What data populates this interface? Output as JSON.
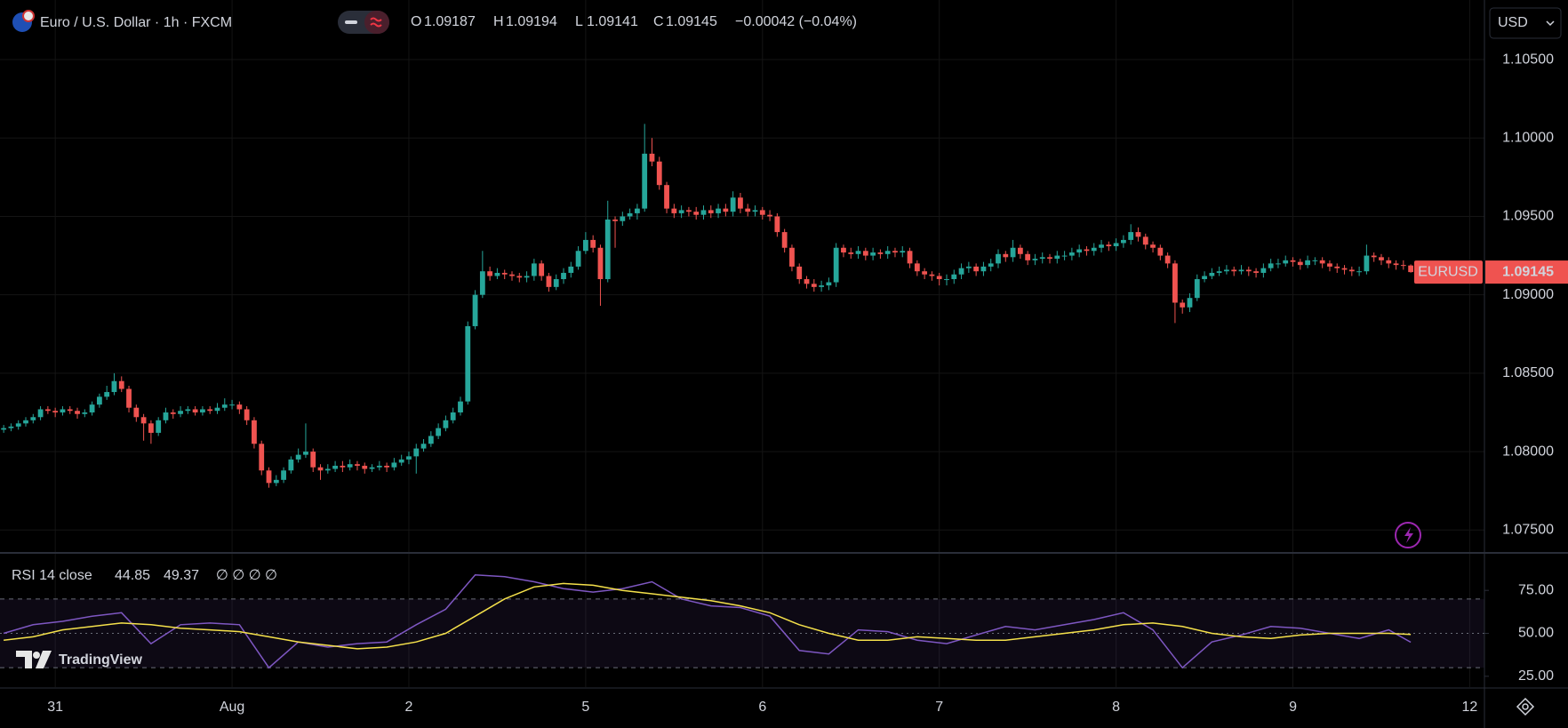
{
  "header": {
    "symbol": "Euro / U.S. Dollar · 1h · FXCM",
    "ohlc_labels": [
      "O",
      "H",
      "L",
      "C"
    ],
    "change": "−0.00042 (−0.04%)"
  },
  "currency": "USD",
  "watermark": "TradingView",
  "chart_data": [
    {
      "type": "candlestick",
      "symbol_tag": "EURUSD",
      "up_color": "#26a69a",
      "down_color": "#ef5350",
      "grid": true,
      "xlim": [
        -0.5,
        201
      ],
      "xticks": [
        {
          "value": 7,
          "label": "31"
        },
        {
          "value": 31,
          "label": "Aug"
        },
        {
          "value": 55,
          "label": "2"
        },
        {
          "value": 79,
          "label": "5"
        },
        {
          "value": 103,
          "label": "6"
        },
        {
          "value": 127,
          "label": "7"
        },
        {
          "value": 151,
          "label": "8"
        },
        {
          "value": 175,
          "label": "9"
        },
        {
          "value": 199,
          "label": "12"
        }
      ],
      "ylim": [
        1.0736,
        1.1088
      ],
      "yticks": [
        {
          "value": 1.075,
          "label": "1.07500"
        },
        {
          "value": 1.08,
          "label": "1.08000"
        },
        {
          "value": 1.085,
          "label": "1.08500"
        },
        {
          "value": 1.09,
          "label": "1.09000"
        },
        {
          "value": 1.095,
          "label": "1.09500"
        },
        {
          "value": 1.1,
          "label": "1.10000"
        },
        {
          "value": 1.105,
          "label": "1.10500"
        }
      ],
      "open": [
        1.0814,
        1.0815,
        1.0816,
        1.0818,
        1.082,
        1.0822,
        1.0827,
        1.0826,
        1.0825,
        1.0827,
        1.0826,
        1.0824,
        1.0825,
        1.083,
        1.0835,
        1.0838,
        1.0845,
        1.084,
        1.0828,
        1.0822,
        1.0818,
        1.0812,
        1.082,
        1.0825,
        1.0824,
        1.0826,
        1.0827,
        1.0825,
        1.0827,
        1.0826,
        1.0828,
        1.083,
        1.083,
        1.0827,
        1.082,
        1.0805,
        1.0788,
        1.078,
        1.0782,
        1.0788,
        1.0795,
        1.0798,
        1.08,
        1.079,
        1.0788,
        1.0789,
        1.0791,
        1.079,
        1.0792,
        1.0791,
        1.0789,
        1.079,
        1.0791,
        1.079,
        1.0793,
        1.0795,
        1.0797,
        1.0802,
        1.0805,
        1.081,
        1.0815,
        1.082,
        1.0825,
        1.0832,
        1.088,
        1.09,
        1.0915,
        1.0912,
        1.0914,
        1.0913,
        1.0912,
        1.0911,
        1.0912,
        1.092,
        1.0912,
        1.0905,
        1.091,
        1.0914,
        1.0918,
        1.0928,
        1.0935,
        1.093,
        1.091,
        1.0948,
        1.0947,
        1.095,
        1.0952,
        1.0955,
        1.099,
        1.0985,
        1.097,
        1.0955,
        1.0952,
        1.0954,
        1.0953,
        1.0951,
        1.0954,
        1.0952,
        1.0955,
        1.0953,
        1.0962,
        1.0955,
        1.0953,
        1.0954,
        1.0951,
        1.095,
        1.094,
        1.093,
        1.0918,
        1.091,
        1.0907,
        1.0905,
        1.0906,
        1.0908,
        1.093,
        1.0927,
        1.0926,
        1.0928,
        1.0925,
        1.0927,
        1.0926,
        1.0928,
        1.0927,
        1.0928,
        1.092,
        1.0915,
        1.0913,
        1.0912,
        1.091,
        1.091,
        1.0913,
        1.0917,
        1.0918,
        1.0915,
        1.0918,
        1.092,
        1.0926,
        1.0924,
        1.093,
        1.0926,
        1.0922,
        1.0923,
        1.0924,
        1.0923,
        1.0925,
        1.0925,
        1.0927,
        1.0929,
        1.0928,
        1.093,
        1.0932,
        1.0931,
        1.0933,
        1.0935,
        1.094,
        1.0937,
        1.0932,
        1.093,
        1.0925,
        1.092,
        1.0895,
        1.0892,
        1.0898,
        1.091,
        1.0912,
        1.0914,
        1.0915,
        1.0916,
        1.0915,
        1.0916,
        1.0915,
        1.0914,
        1.0917,
        1.092,
        1.092,
        1.0922,
        1.0921,
        1.0919,
        1.0922,
        1.0922,
        1.092,
        1.0918,
        1.0917,
        1.0916,
        1.0915,
        1.0915,
        1.0925,
        1.0924,
        1.0922,
        1.092,
        1.0919,
        1.09187
      ],
      "high": [
        1.0817,
        1.0818,
        1.082,
        1.0822,
        1.0824,
        1.0829,
        1.0829,
        1.0828,
        1.0829,
        1.0829,
        1.0828,
        1.0827,
        1.0832,
        1.0837,
        1.0842,
        1.085,
        1.0848,
        1.0842,
        1.083,
        1.0824,
        1.082,
        1.0822,
        1.0828,
        1.0827,
        1.0829,
        1.0829,
        1.0829,
        1.0829,
        1.0829,
        1.0831,
        1.0834,
        1.0833,
        1.0832,
        1.0829,
        1.0822,
        1.0807,
        1.079,
        1.0785,
        1.079,
        1.0797,
        1.0802,
        1.0818,
        1.0802,
        1.0792,
        1.0792,
        1.0794,
        1.0794,
        1.0795,
        1.0794,
        1.0793,
        1.0792,
        1.0794,
        1.0793,
        1.0796,
        1.0798,
        1.08,
        1.0805,
        1.0808,
        1.0813,
        1.0818,
        1.0823,
        1.0828,
        1.0835,
        1.0883,
        1.0903,
        1.0928,
        1.0918,
        1.0917,
        1.0916,
        1.0915,
        1.0914,
        1.0915,
        1.0923,
        1.0922,
        1.0914,
        1.0913,
        1.0917,
        1.0921,
        1.0931,
        1.094,
        1.0938,
        1.0932,
        1.096,
        1.095,
        1.0953,
        1.0955,
        1.0958,
        1.1009,
        1.1,
        1.0988,
        1.0972,
        1.0958,
        1.0957,
        1.0956,
        1.0956,
        1.0957,
        1.0957,
        1.0958,
        1.0958,
        1.0966,
        1.0965,
        1.0958,
        1.0957,
        1.0956,
        1.0954,
        1.0952,
        1.0942,
        1.0932,
        1.092,
        1.0912,
        1.091,
        1.0909,
        1.0911,
        1.0933,
        1.0932,
        1.093,
        1.0931,
        1.093,
        1.093,
        1.0929,
        1.0931,
        1.093,
        1.0931,
        1.093,
        1.0922,
        1.0917,
        1.0915,
        1.0914,
        1.0913,
        1.0916,
        1.092,
        1.0921,
        1.092,
        1.0921,
        1.0923,
        1.0929,
        1.0928,
        1.0935,
        1.0932,
        1.0928,
        1.0926,
        1.0927,
        1.0926,
        1.0928,
        1.0928,
        1.093,
        1.0932,
        1.0931,
        1.0933,
        1.0935,
        1.0934,
        1.0936,
        1.0938,
        1.0945,
        1.0943,
        1.0939,
        1.0934,
        1.0932,
        1.0927,
        1.0922,
        1.0897,
        1.0901,
        1.0913,
        1.0915,
        1.0917,
        1.0918,
        1.0919,
        1.0918,
        1.0919,
        1.0918,
        1.0917,
        1.092,
        1.0923,
        1.0923,
        1.0925,
        1.0924,
        1.0923,
        1.0925,
        1.0924,
        1.0924,
        1.0922,
        1.092,
        1.0919,
        1.0918,
        1.0918,
        1.0932,
        1.0927,
        1.0926,
        1.0924,
        1.0922,
        1.0922,
        1.09194
      ],
      "low": [
        1.0812,
        1.0813,
        1.0814,
        1.0816,
        1.0818,
        1.082,
        1.0824,
        1.0822,
        1.0823,
        1.0824,
        1.0821,
        1.0822,
        1.0823,
        1.0828,
        1.0833,
        1.0836,
        1.0838,
        1.0825,
        1.0819,
        1.0807,
        1.0805,
        1.081,
        1.0818,
        1.0821,
        1.0822,
        1.0824,
        1.0823,
        1.0823,
        1.0824,
        1.0824,
        1.0826,
        1.0827,
        1.0824,
        1.0817,
        1.0802,
        1.0785,
        1.0777,
        1.0778,
        1.078,
        1.0786,
        1.0793,
        1.0796,
        1.0787,
        1.0782,
        1.0786,
        1.0787,
        1.0787,
        1.0788,
        1.0788,
        1.0786,
        1.0787,
        1.0788,
        1.0787,
        1.0788,
        1.0791,
        1.0792,
        1.0786,
        1.08,
        1.0803,
        1.0808,
        1.0813,
        1.0818,
        1.0823,
        1.083,
        1.0878,
        1.0898,
        1.0909,
        1.091,
        1.091,
        1.0909,
        1.0908,
        1.0908,
        1.0909,
        1.0909,
        1.0902,
        1.0903,
        1.0907,
        1.0911,
        1.0916,
        1.0926,
        1.0927,
        1.0893,
        1.0908,
        1.093,
        1.0944,
        1.0948,
        1.0948,
        1.0953,
        1.0982,
        1.0967,
        1.0952,
        1.0949,
        1.0949,
        1.095,
        1.0948,
        1.0948,
        1.0949,
        1.0949,
        1.095,
        1.095,
        1.0952,
        1.095,
        1.095,
        1.0948,
        1.0947,
        1.0937,
        1.0927,
        1.0915,
        1.0907,
        1.0904,
        1.0902,
        1.0902,
        1.0903,
        1.0905,
        1.0924,
        1.0923,
        1.0923,
        1.0922,
        1.0922,
        1.0923,
        1.0923,
        1.0924,
        1.0924,
        1.0917,
        1.0912,
        1.091,
        1.0909,
        1.0906,
        1.0906,
        1.0907,
        1.091,
        1.0914,
        1.0912,
        1.0912,
        1.0915,
        1.0917,
        1.0921,
        1.0921,
        1.0923,
        1.0919,
        1.0919,
        1.092,
        1.092,
        1.092,
        1.0922,
        1.0922,
        1.0924,
        1.0925,
        1.0925,
        1.0927,
        1.0928,
        1.0928,
        1.093,
        1.0932,
        1.0934,
        1.0929,
        1.0927,
        1.0922,
        1.0917,
        1.0882,
        1.0888,
        1.0889,
        1.0896,
        1.0908,
        1.091,
        1.0912,
        1.0913,
        1.0912,
        1.0913,
        1.0912,
        1.0911,
        1.0911,
        1.0915,
        1.0917,
        1.0918,
        1.0918,
        1.0916,
        1.0917,
        1.0919,
        1.0917,
        1.0915,
        1.0914,
        1.0913,
        1.0912,
        1.0912,
        1.0913,
        1.0921,
        1.0919,
        1.0917,
        1.0916,
        1.0916,
        1.09141
      ],
      "close": [
        1.0815,
        1.0816,
        1.0818,
        1.082,
        1.0822,
        1.0827,
        1.0826,
        1.0825,
        1.0827,
        1.0826,
        1.0824,
        1.0825,
        1.083,
        1.0835,
        1.0838,
        1.0845,
        1.084,
        1.0828,
        1.0822,
        1.0818,
        1.0812,
        1.082,
        1.0825,
        1.0824,
        1.0826,
        1.0827,
        1.0825,
        1.0827,
        1.0826,
        1.0828,
        1.083,
        1.083,
        1.0827,
        1.082,
        1.0805,
        1.0788,
        1.078,
        1.0782,
        1.0788,
        1.0795,
        1.0798,
        1.08,
        1.079,
        1.0788,
        1.0789,
        1.0791,
        1.079,
        1.0792,
        1.0791,
        1.0789,
        1.079,
        1.0791,
        1.079,
        1.0793,
        1.0795,
        1.0797,
        1.0802,
        1.0805,
        1.081,
        1.0815,
        1.082,
        1.0825,
        1.0832,
        1.088,
        1.09,
        1.0915,
        1.0912,
        1.0914,
        1.0913,
        1.0912,
        1.0911,
        1.0912,
        1.092,
        1.0912,
        1.0905,
        1.091,
        1.0914,
        1.0918,
        1.0928,
        1.0935,
        1.093,
        1.091,
        1.0948,
        1.0947,
        1.095,
        1.0952,
        1.0955,
        1.099,
        1.0985,
        1.097,
        1.0955,
        1.0952,
        1.0954,
        1.0953,
        1.0951,
        1.0954,
        1.0952,
        1.0955,
        1.0953,
        1.0962,
        1.0955,
        1.0953,
        1.0954,
        1.0951,
        1.095,
        1.094,
        1.093,
        1.0918,
        1.091,
        1.0907,
        1.0905,
        1.0906,
        1.0908,
        1.093,
        1.0927,
        1.0926,
        1.0928,
        1.0925,
        1.0927,
        1.0926,
        1.0928,
        1.0927,
        1.0928,
        1.092,
        1.0915,
        1.0913,
        1.0912,
        1.091,
        1.091,
        1.0913,
        1.0917,
        1.0918,
        1.0915,
        1.0918,
        1.092,
        1.0926,
        1.0924,
        1.093,
        1.0926,
        1.0922,
        1.0923,
        1.0924,
        1.0923,
        1.0925,
        1.0925,
        1.0927,
        1.0929,
        1.0928,
        1.093,
        1.0932,
        1.0931,
        1.0933,
        1.0935,
        1.094,
        1.0937,
        1.0932,
        1.093,
        1.0925,
        1.092,
        1.0895,
        1.0892,
        1.0898,
        1.091,
        1.0912,
        1.0914,
        1.0915,
        1.0916,
        1.0915,
        1.0916,
        1.0915,
        1.0914,
        1.0917,
        1.092,
        1.092,
        1.0922,
        1.0921,
        1.0919,
        1.0922,
        1.0922,
        1.092,
        1.0918,
        1.0917,
        1.0916,
        1.0915,
        1.0915,
        1.0925,
        1.0924,
        1.0922,
        1.092,
        1.0919,
        1.09187,
        1.09145
      ]
    },
    {
      "type": "line",
      "title": "RSI 14 close",
      "legend_extra": "∅ ∅ ∅ ∅",
      "x": [
        0,
        4,
        8,
        12,
        16,
        20,
        24,
        28,
        32,
        36,
        40,
        44,
        48,
        52,
        56,
        60,
        64,
        68,
        72,
        76,
        80,
        84,
        88,
        92,
        96,
        100,
        104,
        108,
        112,
        116,
        120,
        124,
        128,
        132,
        136,
        140,
        144,
        148,
        152,
        156,
        160,
        164,
        168,
        172,
        176,
        180,
        184,
        188,
        191
      ],
      "series": [
        {
          "color": "#7e57c2",
          "values": [
            50,
            55,
            57,
            60,
            62,
            44,
            55,
            56,
            55,
            30,
            45,
            42,
            44,
            45,
            55,
            64,
            84,
            83,
            80,
            76,
            74,
            76,
            80,
            70,
            66,
            65,
            60,
            40,
            38,
            52,
            51,
            46,
            44,
            49,
            54,
            52,
            55,
            58,
            62,
            52,
            30,
            45,
            49,
            54,
            53,
            50,
            47,
            52,
            44.85
          ]
        },
        {
          "color": "#f5e14b",
          "values": [
            46,
            48,
            52,
            54,
            56,
            55,
            53,
            52,
            51,
            48,
            45,
            43,
            41,
            42,
            45,
            50,
            60,
            70,
            77,
            79,
            78,
            75,
            73,
            71,
            69,
            66,
            62,
            55,
            50,
            46,
            46,
            48,
            47,
            46,
            46,
            48,
            50,
            52,
            55,
            56,
            54,
            50,
            48,
            47,
            49,
            50,
            50,
            50,
            49.37
          ]
        }
      ],
      "bands": [
        70,
        50,
        30
      ],
      "ylim": [
        18.7,
        96.3
      ],
      "yticks": [
        {
          "value": 25,
          "label": "25.00"
        },
        {
          "value": 50,
          "label": "50.00"
        },
        {
          "value": 75,
          "label": "75.00"
        }
      ]
    }
  ]
}
